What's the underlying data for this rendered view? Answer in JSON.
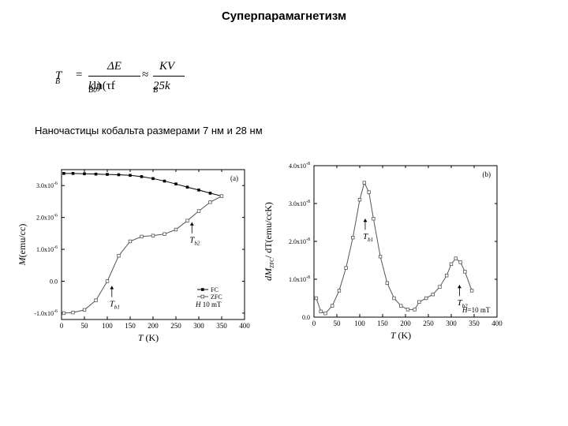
{
  "slide": {
    "title": "Суперпарамагнетизм",
    "formula": {
      "lhs": "T",
      "lhs_sub": "B",
      "eq": "=",
      "frac1_num": "ΔE",
      "frac1_den_main": "k",
      "frac1_den_sub": "B",
      "frac1_den_rest": "ln(τf",
      "frac1_den_rest_sub": "0",
      "frac1_den_close": ")",
      "approx": "≈",
      "frac2_num": "KV",
      "frac2_den_main": "25k",
      "frac2_den_sub": "B"
    },
    "subtitle": "Наночастицы кобальта размерами 7 нм и 28 нм"
  },
  "chart_data": [
    {
      "type": "line",
      "panel_label": "(a)",
      "xlabel": "T",
      "xunit": "(K)",
      "ylabel": "M",
      "yunit": "(emu/cc)",
      "xlim": [
        0,
        400
      ],
      "ylim": [
        -1.2e-06,
        3.5e-06
      ],
      "x_ticks": [
        0,
        50,
        100,
        150,
        200,
        250,
        300,
        350,
        400
      ],
      "y_ticks": [
        {
          "value": -1e-06,
          "label": "-1.0x10"
        },
        {
          "value": 0.0,
          "label": "0.0"
        },
        {
          "value": 1e-06,
          "label": "1.0x10"
        },
        {
          "value": 2e-06,
          "label": "2.0x10"
        },
        {
          "value": 3e-06,
          "label": "3.0x10"
        }
      ],
      "y_tick_exponent": "-6",
      "series": [
        {
          "name": "FC",
          "color": "#000000",
          "marker": "filled-square",
          "x": [
            5,
            25,
            50,
            75,
            100,
            125,
            150,
            175,
            200,
            225,
            250,
            275,
            300,
            325,
            350
          ],
          "y": [
            3.38e-06,
            3.38e-06,
            3.37e-06,
            3.36e-06,
            3.35e-06,
            3.34e-06,
            3.32e-06,
            3.28e-06,
            3.22e-06,
            3.14e-06,
            3.05e-06,
            2.95e-06,
            2.86e-06,
            2.76e-06,
            2.67e-06
          ]
        },
        {
          "name": "ZFC",
          "color": "#555555",
          "marker": "open-square",
          "x": [
            5,
            25,
            50,
            75,
            100,
            125,
            150,
            175,
            200,
            225,
            250,
            275,
            300,
            325,
            350
          ],
          "y": [
            -1e-06,
            -9.8e-07,
            -9e-07,
            -6e-07,
            0.0,
            8e-07,
            1.25e-06,
            1.4e-06,
            1.43e-06,
            1.48e-06,
            1.62e-06,
            1.9e-06,
            2.2e-06,
            2.48e-06,
            2.67e-06
          ]
        }
      ],
      "legend_field": {
        "label": "H",
        "value": "10 mT"
      },
      "annotations": [
        {
          "label": "T",
          "sub": "b1",
          "x": 110,
          "y": -1.5e-07
        },
        {
          "label": "T",
          "sub": "b2",
          "x": 285,
          "y": 1.85e-06
        }
      ],
      "legend_position": "bottom-right"
    },
    {
      "type": "line",
      "panel_label": "(b)",
      "xlabel": "T",
      "xunit": "(K)",
      "ylabel": "dM",
      "ylabel_sub": "ZFC",
      "ylabel_rest": "/ dT(emu/ccK)",
      "xlim": [
        0,
        400
      ],
      "ylim": [
        0,
        4e-08
      ],
      "x_ticks": [
        0,
        50,
        100,
        150,
        200,
        250,
        300,
        350,
        400
      ],
      "y_ticks": [
        {
          "value": 0.0,
          "label": "0.0"
        },
        {
          "value": 1e-08,
          "label": "1.0x10"
        },
        {
          "value": 2e-08,
          "label": "2.0x10"
        },
        {
          "value": 3e-08,
          "label": "3.0x10"
        },
        {
          "value": 4e-08,
          "label": "4.0x10"
        }
      ],
      "y_tick_exponent": "-8",
      "series": [
        {
          "color": "#555555",
          "marker": "open-square",
          "x": [
            5,
            15,
            25,
            40,
            55,
            70,
            85,
            100,
            110,
            120,
            130,
            145,
            160,
            175,
            190,
            205,
            220,
            230,
            245,
            260,
            275,
            290,
            300,
            310,
            320,
            330,
            345
          ],
          "y": [
            5e-09,
            1.5e-09,
            1e-09,
            3e-09,
            7e-09,
            1.3e-08,
            2.1e-08,
            3.1e-08,
            3.55e-08,
            3.3e-08,
            2.6e-08,
            1.6e-08,
            9e-09,
            5e-09,
            3e-09,
            2e-09,
            2e-09,
            4e-09,
            5e-09,
            6e-09,
            8e-09,
            1.1e-08,
            1.4e-08,
            1.55e-08,
            1.45e-08,
            1.2e-08,
            7e-09
          ]
        }
      ],
      "legend_field": {
        "label": "H",
        "value": "=10 mT"
      },
      "annotations": [
        {
          "label": "T",
          "sub": "b1",
          "x": 112,
          "y": 2.6e-08
        },
        {
          "label": "T",
          "sub": "b2",
          "x": 318,
          "y": 8.5e-09
        }
      ],
      "legend_position": "bottom-right"
    }
  ]
}
